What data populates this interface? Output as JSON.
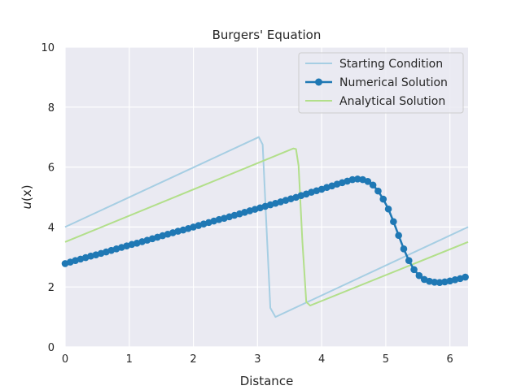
{
  "chart_data": {
    "type": "line",
    "title": "Burgers' Equation",
    "xlabel": "Distance",
    "ylabel_var": "u",
    "ylabel_arg": "(x)",
    "xlim": [
      0,
      6.2832
    ],
    "ylim": [
      0,
      10
    ],
    "xticks": [
      "0",
      "1",
      "2",
      "3",
      "4",
      "5",
      "6"
    ],
    "yticks": [
      "0",
      "2",
      "4",
      "6",
      "8",
      "10"
    ],
    "grid": true,
    "legend_position": "top-right",
    "background": "#eaeaf2",
    "series": [
      {
        "name": "Starting Condition",
        "color": "#a6cee3",
        "marker": false,
        "x": [
          0,
          3.02,
          3.08,
          3.14,
          3.2,
          3.28,
          6.2832
        ],
        "y": [
          4.0,
          7.0,
          6.75,
          4.0,
          1.3,
          1.0,
          4.0
        ]
      },
      {
        "name": "Numerical Solution",
        "color": "#1f78b4",
        "marker": true,
        "x": [
          0.0,
          0.08,
          0.16,
          0.24,
          0.32,
          0.4,
          0.48,
          0.56,
          0.64,
          0.72,
          0.8,
          0.88,
          0.96,
          1.04,
          1.12,
          1.2,
          1.28,
          1.36,
          1.44,
          1.52,
          1.6,
          1.68,
          1.76,
          1.84,
          1.92,
          2.0,
          2.08,
          2.16,
          2.24,
          2.32,
          2.4,
          2.48,
          2.56,
          2.64,
          2.72,
          2.8,
          2.88,
          2.96,
          3.04,
          3.12,
          3.2,
          3.28,
          3.36,
          3.44,
          3.52,
          3.6,
          3.68,
          3.76,
          3.84,
          3.92,
          4.0,
          4.08,
          4.16,
          4.24,
          4.32,
          4.4,
          4.48,
          4.56,
          4.64,
          4.72,
          4.8,
          4.88,
          4.96,
          5.04,
          5.12,
          5.2,
          5.28,
          5.36,
          5.44,
          5.52,
          5.6,
          5.68,
          5.76,
          5.84,
          5.92,
          6.0,
          6.08,
          6.16,
          6.24
        ],
        "y": [
          2.78,
          2.83,
          2.88,
          2.93,
          2.98,
          3.03,
          3.07,
          3.12,
          3.17,
          3.22,
          3.27,
          3.32,
          3.37,
          3.42,
          3.46,
          3.51,
          3.56,
          3.61,
          3.66,
          3.71,
          3.76,
          3.81,
          3.86,
          3.9,
          3.95,
          4.0,
          4.05,
          4.1,
          4.15,
          4.2,
          4.25,
          4.29,
          4.34,
          4.39,
          4.44,
          4.49,
          4.54,
          4.59,
          4.64,
          4.69,
          4.74,
          4.79,
          4.84,
          4.89,
          4.94,
          4.99,
          5.05,
          5.1,
          5.16,
          5.21,
          5.26,
          5.32,
          5.37,
          5.43,
          5.48,
          5.53,
          5.58,
          5.6,
          5.58,
          5.52,
          5.4,
          5.2,
          4.93,
          4.6,
          4.18,
          3.72,
          3.27,
          2.88,
          2.58,
          2.38,
          2.25,
          2.19,
          2.16,
          2.15,
          2.17,
          2.2,
          2.24,
          2.28,
          2.33
        ]
      },
      {
        "name": "Analytical Solution",
        "color": "#b2df8a",
        "marker": false,
        "x": [
          0,
          3.56,
          3.6,
          3.64,
          3.7,
          3.76,
          3.82,
          6.2832
        ],
        "y": [
          3.5,
          6.62,
          6.6,
          6.05,
          3.5,
          1.5,
          1.38,
          3.5
        ]
      }
    ]
  }
}
